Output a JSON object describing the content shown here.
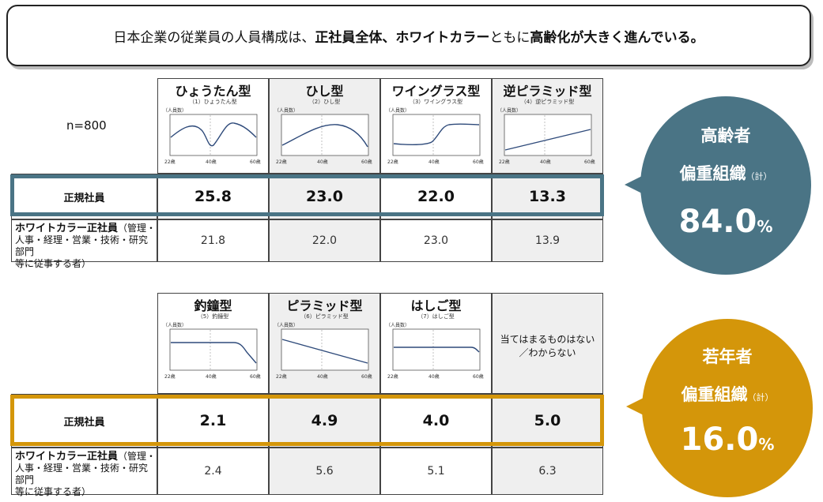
{
  "headline": {
    "prefix": "日本企業の従業員の人員構成は、",
    "bold1": "正社員全体、ホワイトカラー",
    "middle": "ともに",
    "bold2": "高齢化が大きく進んでいる。"
  },
  "sample": "n=800",
  "axis": {
    "y": "（人員数）",
    "x_ticks": [
      "22歳",
      "40歳",
      "60歳"
    ]
  },
  "top_table": {
    "columns": [
      {
        "title": "ひょうたん型",
        "subtitle": "（1）ひょうたん型"
      },
      {
        "title": "ひし型",
        "subtitle": "（2）ひし型"
      },
      {
        "title": "ワイングラス型",
        "subtitle": "（3）ワイングラス型"
      },
      {
        "title": "逆ピラミッド型",
        "subtitle": "（4）逆ピラミッド型"
      }
    ],
    "row1_label": "正規社員",
    "row1_values": [
      "25.8",
      "23.0",
      "22.0",
      "13.3"
    ],
    "row2_label_bold": "ホワイトカラー正社員",
    "row2_label_rest1": "（管理・",
    "row2_label_rest2": "人事・経理・営業・技術・研究部門",
    "row2_label_rest3": "等に従事する者）",
    "row2_values": [
      "21.8",
      "22.0",
      "23.0",
      "13.9"
    ]
  },
  "bottom_table": {
    "columns": [
      {
        "title": "釣鐘型",
        "subtitle": "（5）釣鐘型"
      },
      {
        "title": "ピラミッド型",
        "subtitle": "（6）ピラミッド型"
      },
      {
        "title": "はしご型",
        "subtitle": "（7）はしご型"
      },
      {
        "title": "",
        "subtitle": ""
      }
    ],
    "na_text": "当てはまるものはない／わからない",
    "row1_label": "正規社員",
    "row1_values": [
      "2.1",
      "4.9",
      "4.0",
      "5.0"
    ],
    "row2_label_bold": "ホワイトカラー正社員",
    "row2_label_rest1": "（管理・",
    "row2_label_rest2": "人事・経理・営業・技術・研究部門",
    "row2_label_rest3": "等に従事する者）",
    "row2_values": [
      "2.4",
      "5.6",
      "5.1",
      "6.3"
    ]
  },
  "bubbles": {
    "elder": {
      "line1": "高齢者",
      "line2": "偏重組織",
      "note": "（計）",
      "value": "84.0",
      "unit": "%",
      "color": "#4a7485"
    },
    "young": {
      "line1": "若年者",
      "line2": "偏重組織",
      "note": "（計）",
      "value": "16.0",
      "unit": "%",
      "color": "#d4960a"
    }
  },
  "colors": {
    "top_highlight": "#4a7485",
    "bottom_highlight": "#d4960a",
    "curve": "#2e4a7a"
  },
  "chart_data": {
    "type": "table",
    "title": "",
    "categories": [
      "ひょうたん型",
      "ひし型",
      "ワイングラス型",
      "逆ピラミッド型",
      "釣鐘型",
      "ピラミッド型",
      "はしご型",
      "当てはまるものはない／わからない"
    ],
    "series": [
      {
        "name": "正規社員",
        "values": [
          25.8,
          23.0,
          22.0,
          13.3,
          2.1,
          4.9,
          4.0,
          5.0
        ]
      },
      {
        "name": "ホワイトカラー正社員",
        "values": [
          21.8,
          22.0,
          23.0,
          13.9,
          2.4,
          5.6,
          5.1,
          6.3
        ]
      }
    ]
  }
}
